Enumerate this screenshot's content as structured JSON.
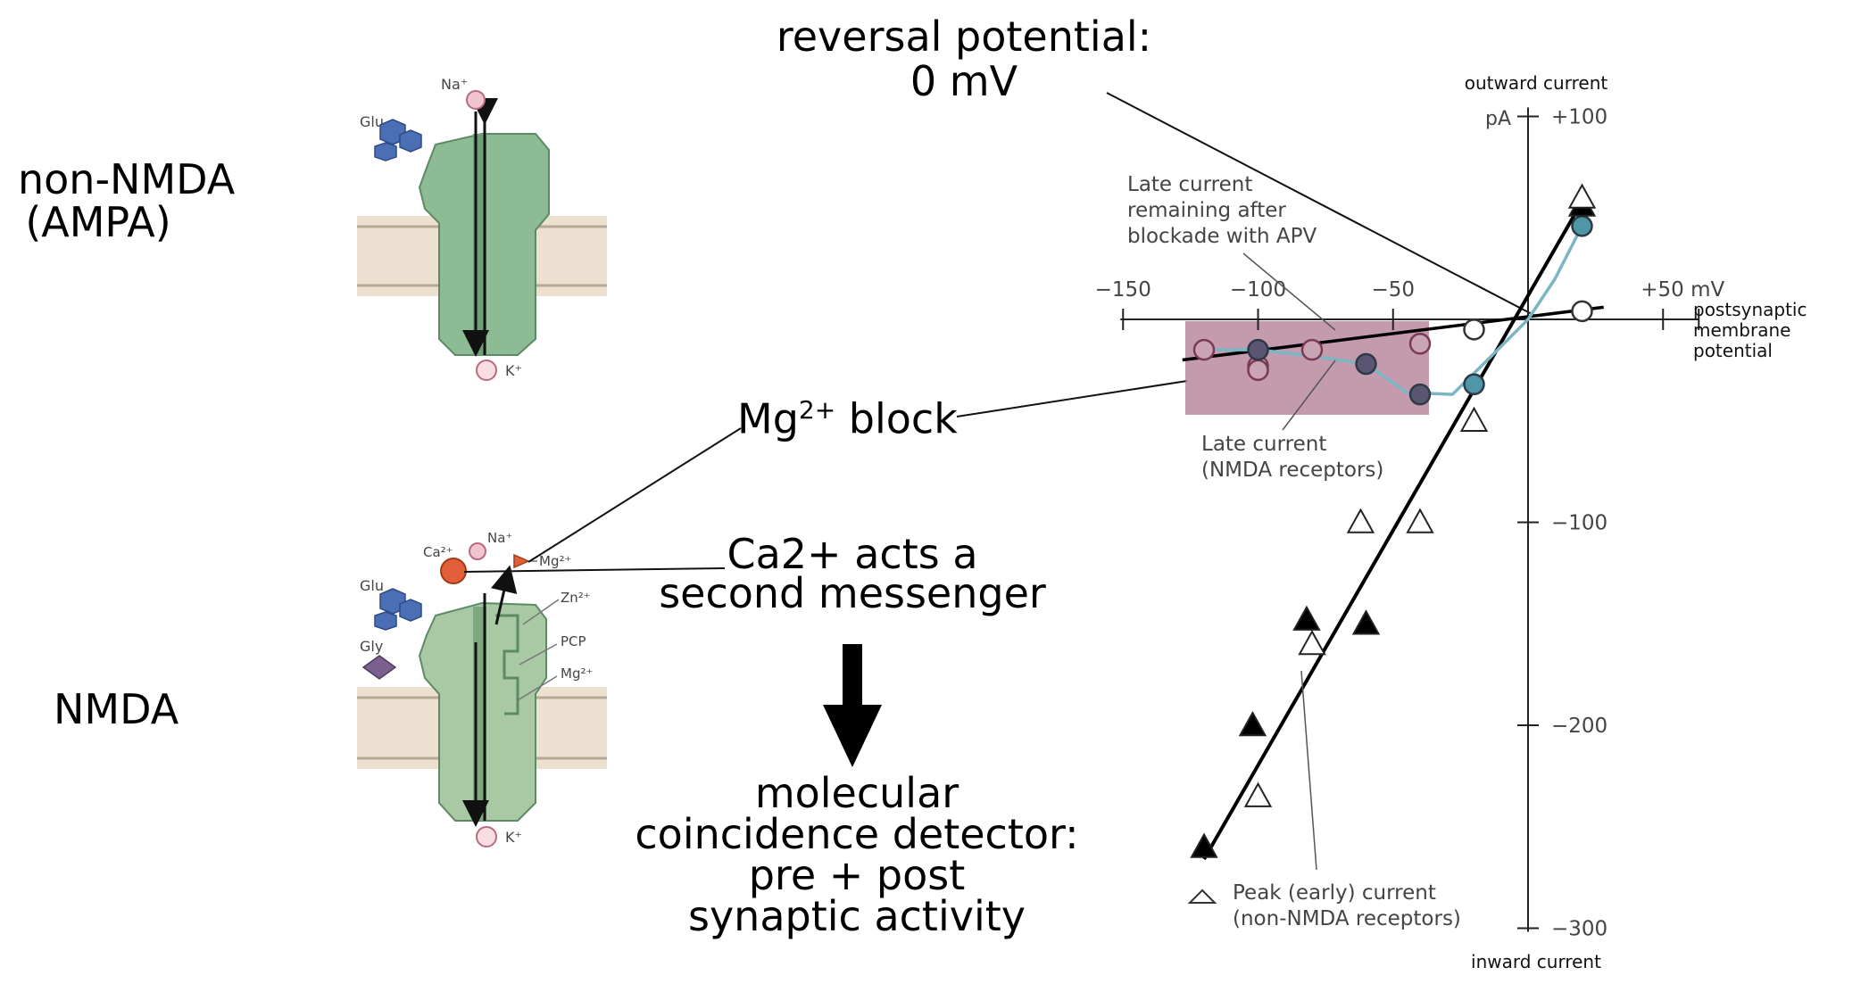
{
  "receptors": {
    "non_nmda": {
      "line1": "non-NMDA",
      "line2": "(AMPA)"
    },
    "nmda": {
      "label": "NMDA"
    }
  },
  "channel_ions": {
    "na": "Na⁺",
    "k": "K⁺",
    "glu": "Glu",
    "gly": "Gly",
    "ca": "Ca²⁺",
    "mg": "Mg²⁺",
    "zn": "Zn²⁺",
    "pcp": "PCP",
    "mg_site": "Mg²⁺"
  },
  "annotations": {
    "reversal_line1": "reversal potential:",
    "reversal_line2": "0 mV",
    "mg_block_prefix": "Mg",
    "mg_block_sup": "2+",
    "mg_block_suffix": " block",
    "ca_line1": "Ca2+ acts a",
    "ca_line2": "second messenger",
    "detector_line1": "molecular",
    "detector_line2": "coincidence detector:",
    "detector_line3": "pre + post",
    "detector_line4": "synaptic activity"
  },
  "graph_labels": {
    "outward_current": "outward current",
    "inward_current": "inward current",
    "pa_unit": "pA",
    "x_axis_line1": "postsynaptic",
    "x_axis_line2": "membrane",
    "x_axis_line3": "potential",
    "late_apv_line1": "Late current",
    "late_apv_line2": "remaining after",
    "late_apv_line3": "blockade with APV",
    "late_nmda_line1": "Late current",
    "late_nmda_line2": "(NMDA receptors)",
    "peak_line1": "Peak (early) current",
    "peak_line2": "(non-NMDA receptors)"
  },
  "colors": {
    "channel_green": "#8dbb94",
    "membrane": "#ece0d0",
    "glutamate": "#4a6fb5",
    "glycine": "#7b5f8e",
    "calcium": "#e0603a",
    "cation_pink": "#f2c4cf",
    "mg_block_box": "#b07a90",
    "nmda_dot": "#5a5570",
    "apv_dot": "#c9a5b4",
    "teal_dot": "#4f96a8"
  },
  "chart_data": {
    "type": "scatter",
    "xlim": [
      -150,
      50
    ],
    "ylim": [
      -300,
      100
    ],
    "x_ticks": [
      "−150",
      "−100",
      "−50",
      "+50 mV"
    ],
    "x_tick_values": [
      -150,
      -100,
      -50,
      50
    ],
    "y_ticks": [
      "+100",
      "−100",
      "−200",
      "−300"
    ],
    "y_tick_values": [
      100,
      -100,
      -200,
      -300
    ],
    "series": [
      {
        "name": "Peak (early) current (non-NMDA receptors)",
        "marker": "open-triangle",
        "points": [
          [
            20,
            60
          ],
          [
            -20,
            -50
          ],
          [
            -40,
            -100
          ],
          [
            -62,
            -100
          ],
          [
            -80,
            -160
          ],
          [
            -100,
            -235
          ]
        ]
      },
      {
        "marker": "filled-triangle",
        "points": [
          [
            20,
            56
          ],
          [
            -60,
            -150
          ],
          [
            -82,
            -148
          ],
          [
            -102,
            -200
          ],
          [
            -120,
            -260
          ]
        ]
      },
      {
        "name": "Late current remaining after blockade with APV",
        "marker": "open-circle",
        "points": [
          [
            20,
            4
          ],
          [
            -20,
            -5
          ],
          [
            -40,
            -12
          ],
          [
            -80,
            -15
          ],
          [
            -100,
            -23
          ],
          [
            -100,
            -25
          ],
          [
            -120,
            -15
          ]
        ]
      },
      {
        "name": "Late current (NMDA receptors)",
        "marker": "filled-circle",
        "points": [
          [
            20,
            46
          ],
          [
            -20,
            -32
          ],
          [
            -40,
            -37
          ],
          [
            -60,
            -22
          ],
          [
            -100,
            -15
          ]
        ]
      }
    ]
  }
}
